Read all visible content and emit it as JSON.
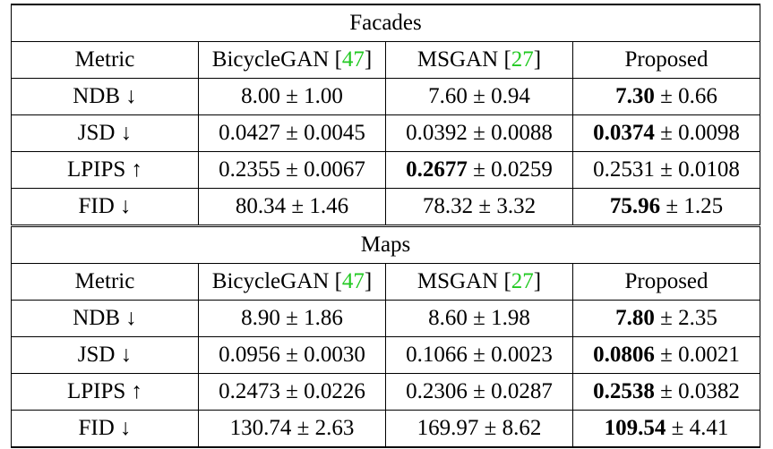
{
  "sections": [
    {
      "title": "Facades",
      "header": {
        "metric": "Metric",
        "bicyclegan": "BicycleGAN",
        "bicyclegan_ref": "47",
        "msgan": "MSGAN",
        "msgan_ref": "27",
        "proposed": "Proposed"
      },
      "rows": [
        {
          "metric": "NDB ↓",
          "bicyclegan": "8.00 ± 1.00",
          "msgan": "7.60 ± 0.94",
          "proposed_bold": "7.30",
          "proposed_rest": " ± 0.66"
        },
        {
          "metric": "JSD ↓",
          "bicyclegan": "0.0427 ± 0.0045",
          "msgan": "0.0392 ± 0.0088",
          "proposed_bold": "0.0374",
          "proposed_rest": " ± 0.0098"
        },
        {
          "metric": "LPIPS ↑",
          "bicyclegan": "0.2355 ± 0.0067",
          "msgan_bold": "0.2677",
          "msgan_rest": " ± 0.0259",
          "proposed": "0.2531 ± 0.0108"
        },
        {
          "metric": "FID ↓",
          "bicyclegan": "80.34 ± 1.46",
          "msgan": "78.32 ± 3.32",
          "proposed_bold": "75.96",
          "proposed_rest": " ± 1.25"
        }
      ]
    },
    {
      "title": "Maps",
      "header": {
        "metric": "Metric",
        "bicyclegan": "BicycleGAN",
        "bicyclegan_ref": "47",
        "msgan": "MSGAN",
        "msgan_ref": "27",
        "proposed": "Proposed"
      },
      "rows": [
        {
          "metric": "NDB ↓",
          "bicyclegan": "8.90 ± 1.86",
          "msgan": "8.60 ± 1.98",
          "proposed_bold": "7.80",
          "proposed_rest": " ± 2.35"
        },
        {
          "metric": "JSD ↓",
          "bicyclegan": "0.0956 ± 0.0030",
          "msgan": "0.1066 ± 0.0023",
          "proposed_bold": "0.0806",
          "proposed_rest": " ± 0.0021"
        },
        {
          "metric": "LPIPS ↑",
          "bicyclegan": "0.2473 ± 0.0226",
          "msgan": "0.2306 ± 0.0287",
          "proposed_bold": "0.2538",
          "proposed_rest": " ± 0.0382"
        },
        {
          "metric": "FID ↓",
          "bicyclegan": "130.74 ± 2.63",
          "msgan": "169.97 ± 8.62",
          "proposed_bold": "109.54",
          "proposed_rest": " ± 4.41"
        }
      ]
    }
  ]
}
